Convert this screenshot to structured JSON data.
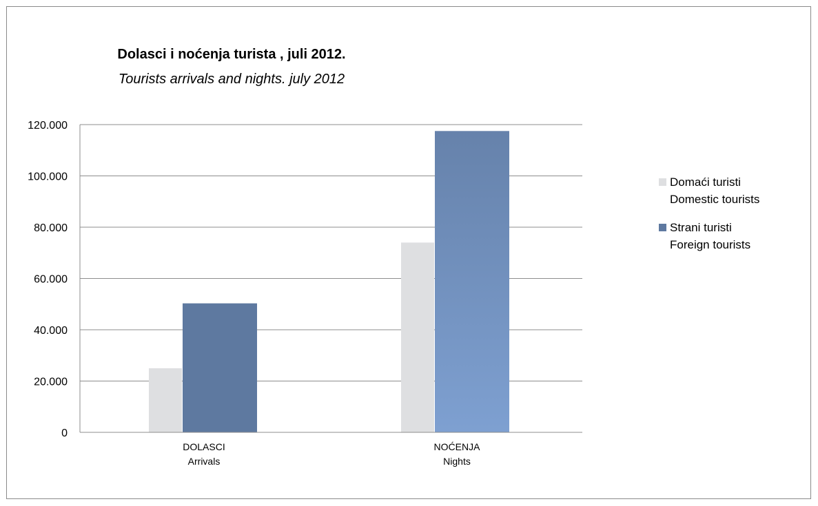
{
  "chart_data": {
    "type": "bar",
    "title": "Dolasci i noćenja turista , juli 2012.",
    "subtitle": "Tourists arrivals and nights. july 2012",
    "categories": [
      [
        "DOLASCI",
        "Arrivals"
      ],
      [
        "NOĆENJA",
        "Nights"
      ]
    ],
    "series": [
      {
        "name": [
          "Domaći turisti",
          "Domestic tourists"
        ],
        "color": "#dedfe1",
        "values": [
          25000,
          74000
        ]
      },
      {
        "name": [
          "Strani turisti",
          "Foreign tourists"
        ],
        "color": "#5e79a0",
        "values": [
          50300,
          117500
        ]
      }
    ],
    "ylim": [
      0,
      120000
    ],
    "yticks": [
      0,
      20000,
      40000,
      60000,
      80000,
      100000,
      120000
    ],
    "ytick_labels": [
      "0",
      "20.000",
      "40.000",
      "60.000",
      "80.000",
      "100.000",
      "120.000"
    ],
    "grid": true,
    "legend_position": "right"
  }
}
